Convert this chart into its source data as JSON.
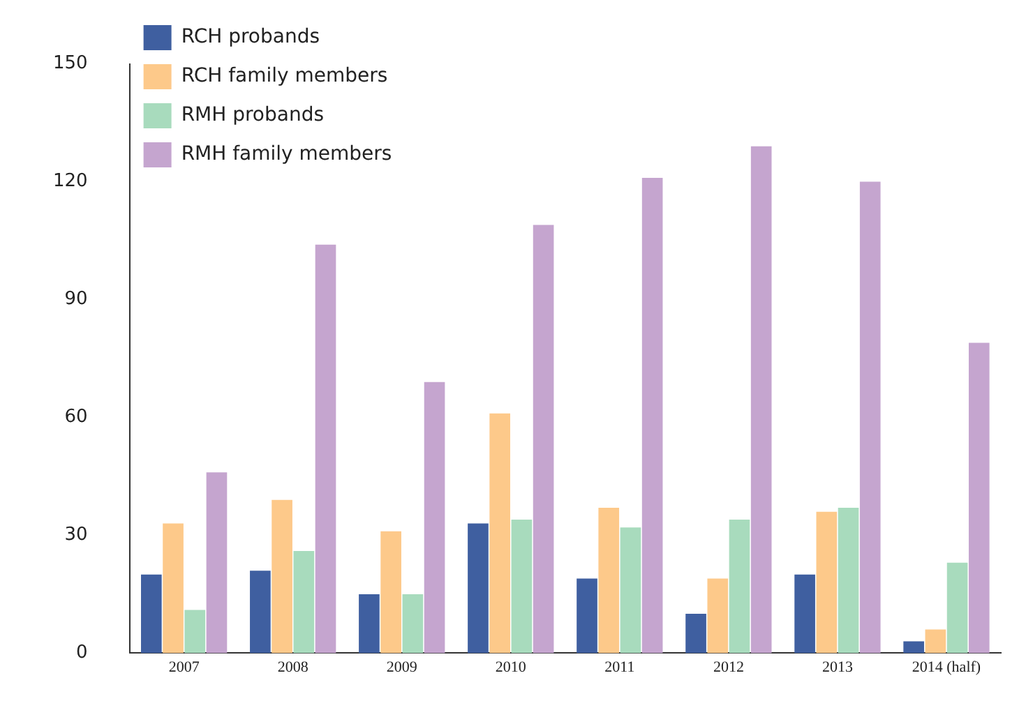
{
  "chart_data": {
    "type": "bar",
    "categories": [
      "2007",
      "2008",
      "2009",
      "2010",
      "2011",
      "2012",
      "2013",
      "2014 (half)"
    ],
    "series": [
      {
        "name": "RCH probands",
        "color": "#3f5fa0",
        "values": [
          20,
          21,
          15,
          33,
          19,
          10,
          20,
          3
        ]
      },
      {
        "name": "RCH family members",
        "color": "#fdc98a",
        "values": [
          33,
          39,
          31,
          61,
          37,
          19,
          36,
          6
        ]
      },
      {
        "name": "RMH probands",
        "color": "#a8dbbd",
        "values": [
          11,
          26,
          15,
          34,
          32,
          34,
          37,
          23
        ]
      },
      {
        "name": "RMH family members",
        "color": "#c5a5cf",
        "values": [
          46,
          104,
          69,
          109,
          121,
          129,
          120,
          79
        ]
      }
    ],
    "ylim": [
      0,
      150
    ],
    "yticks": [
      0,
      30,
      60,
      90,
      120,
      150
    ],
    "grid": false,
    "legend": "top left"
  }
}
